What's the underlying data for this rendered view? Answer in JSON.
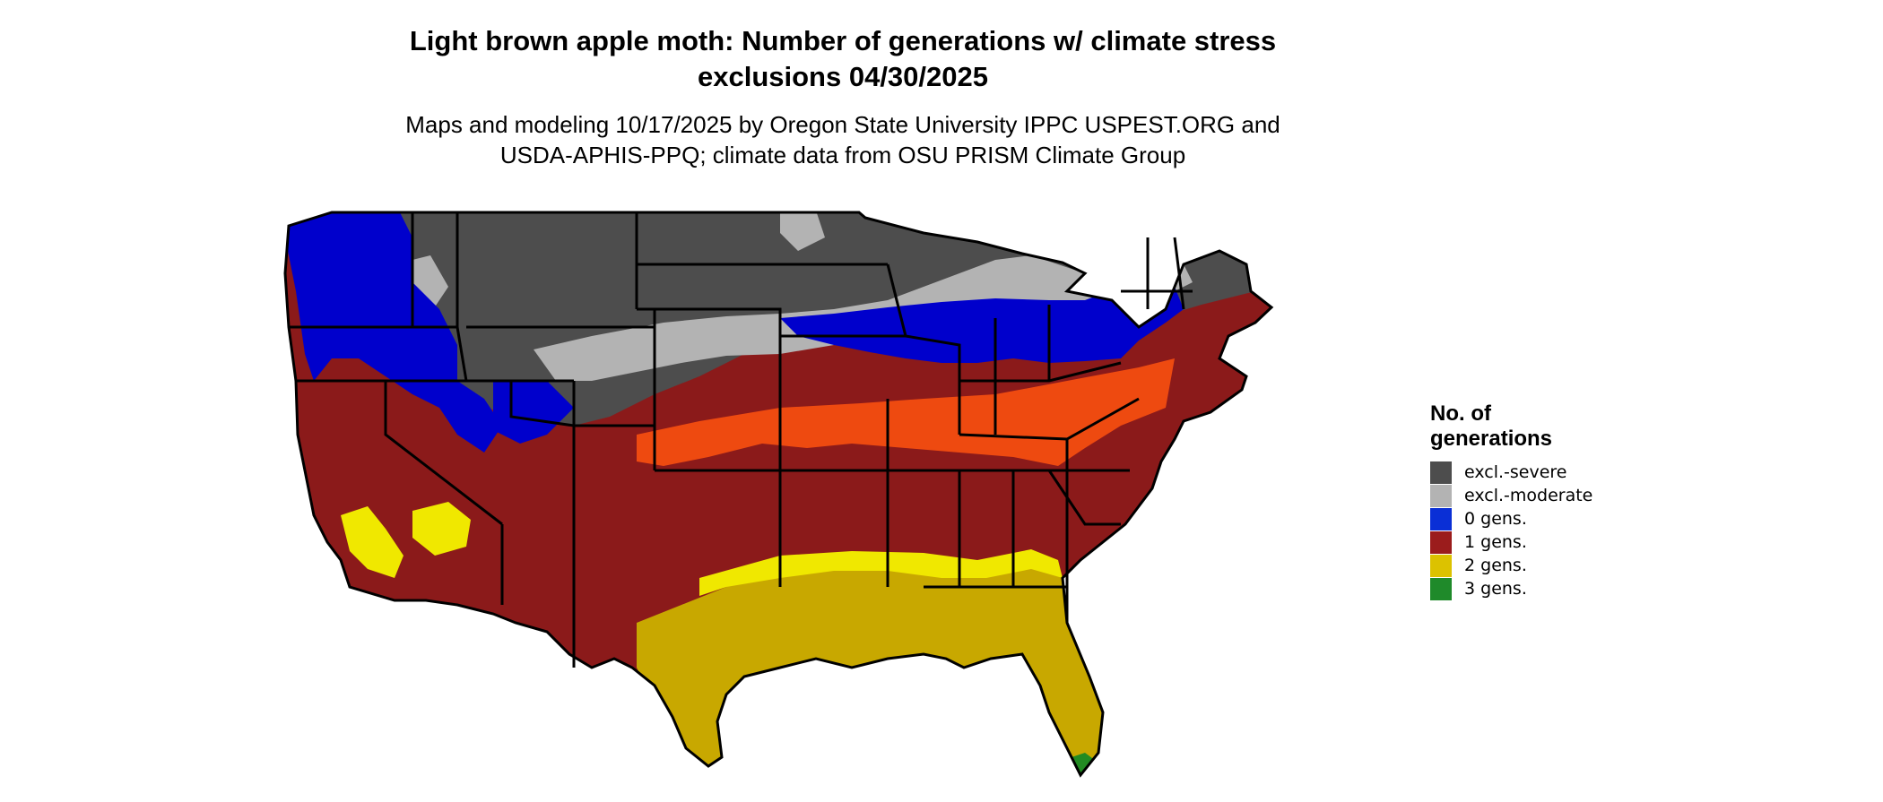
{
  "map": {
    "title_line1": "Light brown apple moth: Number of generations w/ climate stress",
    "title_line2": "exclusions 04/30/2025",
    "subtitle_line1": "Maps and modeling 10/17/2025 by Oregon State University IPPC USPEST.ORG and",
    "subtitle_line2": "USDA-APHIS-PPQ; climate data from OSU PRISM Climate Group",
    "region": "Contiguous United States"
  },
  "legend": {
    "title_line1": "No. of",
    "title_line2": "generations",
    "items": [
      {
        "label": "excl.-severe",
        "color": "#4d4d4d"
      },
      {
        "label": "excl.-moderate",
        "color": "#b3b3b3"
      },
      {
        "label": "0 gens.",
        "color": "#0a2fd6"
      },
      {
        "label": "1 gens.",
        "color": "#9b1c1c"
      },
      {
        "label": "2 gens.",
        "color": "#dcc200"
      },
      {
        "label": "3 gens.",
        "color": "#1f8a2a"
      }
    ]
  },
  "colors": {
    "severe": "#4d4d4d",
    "moderate": "#b3b3b3",
    "zero": "#0000cc",
    "one": "#8b1a1a",
    "one_light": "#ee4a10",
    "two": "#c8a800",
    "two_light": "#f0e800",
    "three": "#228b22",
    "border": "#000000"
  }
}
